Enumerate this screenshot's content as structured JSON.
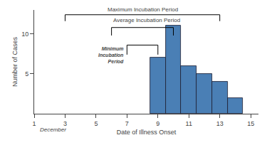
{
  "chart_data": {
    "type": "bar",
    "x": [
      9,
      10,
      11,
      12,
      13,
      14
    ],
    "values": [
      7,
      11,
      6,
      5,
      4,
      2
    ],
    "color": "#4a7fb5",
    "xlabel": "Date of Illness Onset",
    "ylabel": "Number of Cases",
    "xlim": [
      1,
      15.5
    ],
    "ylim": [
      0,
      13
    ],
    "xticks": [
      1,
      3,
      5,
      7,
      9,
      11,
      13,
      15
    ],
    "yticks": [
      5,
      10
    ],
    "grid": false,
    "annotations": [
      {
        "text": "December"
      }
    ],
    "brackets": [
      {
        "label": "Maximum Incubation Period",
        "x": [
          3,
          13
        ],
        "y": [
          11.6,
          12.4
        ]
      },
      {
        "label": "Average Incubation Period",
        "x": [
          6,
          10
        ],
        "y": [
          9.8,
          10.8
        ]
      },
      {
        "label": "Minimum\nIncubation\nPeriod",
        "x": [
          7,
          9
        ],
        "y": [
          7.4,
          8.6
        ]
      }
    ]
  }
}
